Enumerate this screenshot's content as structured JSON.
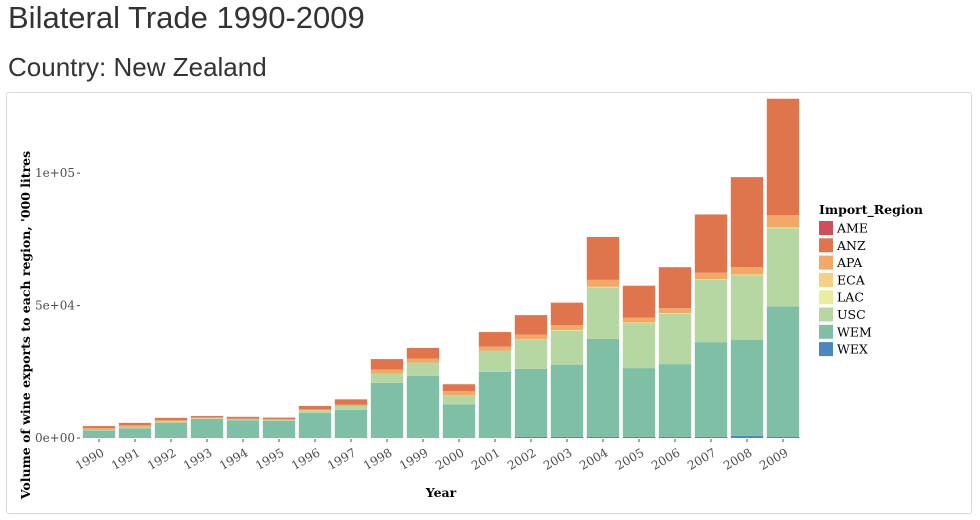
{
  "page": {
    "title": "Bilateral Trade 1990-2009",
    "subtitle": "Country: New Zealand"
  },
  "chart_data": {
    "type": "bar",
    "stacked": true,
    "xlabel": "Year",
    "ylabel": "Volume of wine exports to each region, '000 litres",
    "ylim": [
      0,
      128000
    ],
    "yticks": [
      0,
      50000,
      100000
    ],
    "ytick_labels": [
      "0e+00",
      "5e+04",
      "1e+05"
    ],
    "legend_title": "Import_Region",
    "legend_position": "right",
    "grid": false,
    "categories": [
      "1990",
      "1991",
      "1992",
      "1993",
      "1994",
      "1995",
      "1996",
      "1997",
      "1998",
      "1999",
      "2000",
      "2001",
      "2002",
      "2003",
      "2004",
      "2005",
      "2006",
      "2007",
      "2008",
      "2009"
    ],
    "series": [
      {
        "name": "WEX",
        "color": "#4a86c0",
        "values": [
          0,
          0,
          0,
          0,
          0,
          0,
          0,
          0,
          0,
          0,
          0,
          0,
          400,
          400,
          400,
          400,
          400,
          400,
          800,
          500
        ]
      },
      {
        "name": "WEM",
        "color": "#7ebfa5",
        "values": [
          2800,
          3700,
          5800,
          7200,
          6700,
          6500,
          9500,
          10600,
          20800,
          23500,
          12700,
          25000,
          25700,
          27300,
          37000,
          26000,
          27500,
          35800,
          36200,
          49200
        ]
      },
      {
        "name": "USC",
        "color": "#b6d7a2",
        "values": [
          400,
          500,
          600,
          300,
          300,
          300,
          1000,
          1500,
          3500,
          5000,
          3500,
          8000,
          11000,
          13000,
          19500,
          17000,
          19000,
          23500,
          24500,
          29500
        ]
      },
      {
        "name": "LAC",
        "color": "#e8ee9e",
        "values": [
          0,
          0,
          0,
          0,
          0,
          0,
          0,
          0,
          0,
          0,
          0,
          0,
          100,
          100,
          200,
          200,
          200,
          200,
          200,
          300
        ]
      },
      {
        "name": "ECA",
        "color": "#f7cf85",
        "values": [
          0,
          0,
          0,
          0,
          0,
          0,
          0,
          0,
          0,
          0,
          0,
          0,
          0,
          0,
          0,
          0,
          0,
          0,
          0,
          0
        ]
      },
      {
        "name": "APA",
        "color": "#f2a968",
        "values": [
          500,
          600,
          400,
          300,
          300,
          300,
          300,
          500,
          1600,
          1500,
          1500,
          1500,
          1800,
          1800,
          2600,
          1900,
          1900,
          2500,
          2800,
          4600
        ]
      },
      {
        "name": "ANZ",
        "color": "#e0744d",
        "values": [
          800,
          900,
          800,
          500,
          700,
          600,
          1300,
          2000,
          3900,
          4000,
          2600,
          5500,
          7400,
          8500,
          16200,
          12000,
          15500,
          22000,
          34000,
          44000
        ]
      },
      {
        "name": "AME",
        "color": "#cf4e5a",
        "values": [
          0,
          0,
          0,
          0,
          0,
          0,
          0,
          0,
          0,
          0,
          0,
          0,
          0,
          0,
          0,
          0,
          0,
          0,
          0,
          0
        ]
      }
    ],
    "legend_order": [
      "AME",
      "ANZ",
      "APA",
      "ECA",
      "LAC",
      "USC",
      "WEM",
      "WEX"
    ]
  }
}
